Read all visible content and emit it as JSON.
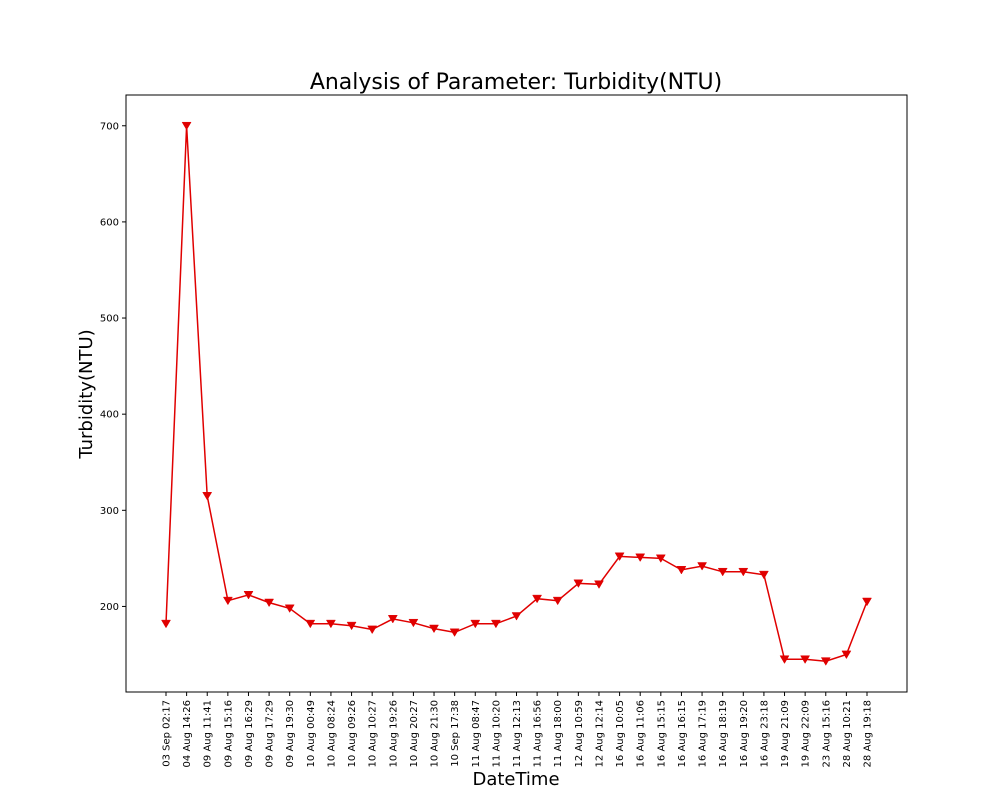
{
  "chart_data": {
    "type": "line",
    "title": "Analysis of Parameter: Turbidity(NTU)",
    "xlabel": "DateTime",
    "ylabel": "Turbidity(NTU)",
    "categories": [
      "03 Sep 02:17",
      "04 Aug 14:26",
      "09 Aug 11:41",
      "09 Aug 15:16",
      "09 Aug 16:29",
      "09 Aug 17:29",
      "09 Aug 19:30",
      "10 Aug 00:49",
      "10 Aug 08:24",
      "10 Aug 09:26",
      "10 Aug 10:27",
      "10 Aug 19:26",
      "10 Aug 20:27",
      "10 Aug 21:30",
      "10 Sep 17:38",
      "11 Aug 08:47",
      "11 Aug 10:20",
      "11 Aug 12:13",
      "11 Aug 16:56",
      "11 Aug 18:00",
      "12 Aug 10:59",
      "12 Aug 12:14",
      "16 Aug 10:05",
      "16 Aug 11:06",
      "16 Aug 15:15",
      "16 Aug 16:15",
      "16 Aug 17:19",
      "16 Aug 18:19",
      "16 Aug 19:20",
      "16 Aug 23:18",
      "19 Aug 21:09",
      "19 Aug 22:09",
      "23 Aug 15:16",
      "28 Aug 10:21",
      "28 Aug 19:18"
    ],
    "series": [
      {
        "values": [
          182,
          700,
          315,
          206,
          212,
          204,
          198,
          182,
          182,
          180,
          176,
          187,
          183,
          177,
          173,
          182,
          182,
          190,
          208,
          206,
          224,
          223,
          252,
          251,
          250,
          238,
          242,
          236,
          236,
          233,
          145,
          145,
          143,
          150,
          205
        ],
        "color": "#e00000",
        "marker": "triangle-down"
      }
    ],
    "yticks": [
      200,
      300,
      400,
      500,
      600,
      700
    ],
    "ylim": [
      111,
      732
    ],
    "grid": false,
    "legend": "none"
  }
}
